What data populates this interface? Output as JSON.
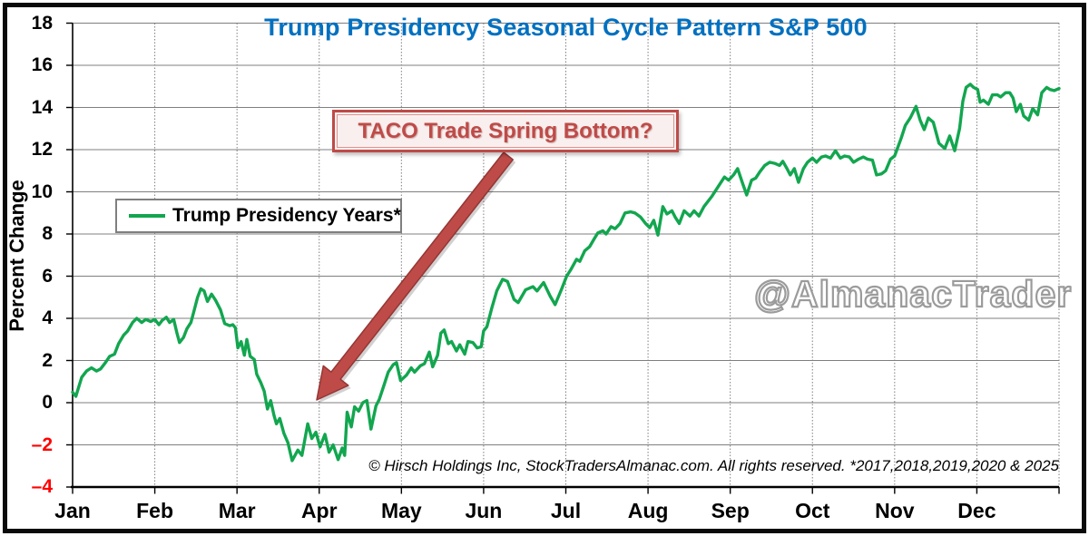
{
  "title": {
    "text": "Trump Presidency Seasonal Cycle Pattern S&P 500"
  },
  "y_axis": {
    "title": "Percent Change",
    "tick_values": [
      18,
      16,
      14,
      12,
      10,
      8,
      6,
      4,
      2,
      0,
      -2,
      -4
    ]
  },
  "x_axis": {
    "months": [
      "Jan",
      "Feb",
      "Mar",
      "Apr",
      "May",
      "Jun",
      "Jul",
      "Aug",
      "Sep",
      "Oct",
      "Nov",
      "Dec"
    ]
  },
  "legend": {
    "label": "Trump Presidency Years*"
  },
  "annotation": {
    "text": "TACO Trade Spring Bottom?"
  },
  "watermark": {
    "text": "@AlmanacTrader"
  },
  "footnote": {
    "text": "© Hirsch Holdings Inc, StockTradersAlmanac.com. All rights reserved. *2017,2018,2019,2020 & 2025"
  },
  "colors": {
    "title_blue": "#0070C0",
    "line_green": "#12A64F",
    "annotation_red": "#BE4B48",
    "annotation_red_dark": "#943634",
    "negative_tick_red": "#FF0000",
    "watermark_gray": "#9B9B9B",
    "grid_gray": "#7F7F7F",
    "axis_black": "#000000"
  },
  "chart_data": {
    "type": "line",
    "title": "Trump Presidency Seasonal Cycle Pattern S&P 500",
    "xlabel": "",
    "ylabel": "Percent Change",
    "ylim": [
      -4,
      18
    ],
    "xlim": [
      0,
      12
    ],
    "x_unit": "month fraction (0 = Jan 1, 12 = Dec 31)",
    "x_tick_labels": [
      "Jan",
      "Feb",
      "Mar",
      "Apr",
      "May",
      "Jun",
      "Jul",
      "Aug",
      "Sep",
      "Oct",
      "Nov",
      "Dec"
    ],
    "y_ticks": [
      18,
      16,
      14,
      12,
      10,
      8,
      6,
      4,
      2,
      0,
      -2,
      -4
    ],
    "grid": true,
    "legend_position": "upper-left-inside",
    "series": [
      {
        "name": "Trump Presidency Years*",
        "points": [
          [
            0.0,
            0.5
          ],
          [
            0.04,
            0.3
          ],
          [
            0.11,
            1.2
          ],
          [
            0.17,
            1.5
          ],
          [
            0.23,
            1.65
          ],
          [
            0.29,
            1.5
          ],
          [
            0.34,
            1.6
          ],
          [
            0.4,
            1.9
          ],
          [
            0.45,
            2.2
          ],
          [
            0.51,
            2.3
          ],
          [
            0.56,
            2.8
          ],
          [
            0.62,
            3.2
          ],
          [
            0.67,
            3.4
          ],
          [
            0.73,
            3.8
          ],
          [
            0.78,
            4.0
          ],
          [
            0.84,
            3.8
          ],
          [
            0.89,
            3.95
          ],
          [
            0.95,
            3.85
          ],
          [
            1.0,
            3.95
          ],
          [
            1.05,
            3.7
          ],
          [
            1.09,
            3.9
          ],
          [
            1.14,
            4.05
          ],
          [
            1.18,
            3.8
          ],
          [
            1.23,
            3.95
          ],
          [
            1.27,
            3.3
          ],
          [
            1.3,
            2.85
          ],
          [
            1.35,
            3.1
          ],
          [
            1.39,
            3.5
          ],
          [
            1.44,
            3.8
          ],
          [
            1.48,
            4.4
          ],
          [
            1.52,
            5.0
          ],
          [
            1.56,
            5.4
          ],
          [
            1.6,
            5.3
          ],
          [
            1.64,
            4.8
          ],
          [
            1.69,
            5.15
          ],
          [
            1.74,
            4.85
          ],
          [
            1.8,
            4.4
          ],
          [
            1.85,
            3.75
          ],
          [
            1.91,
            3.65
          ],
          [
            1.95,
            3.7
          ],
          [
            1.98,
            3.55
          ],
          [
            2.01,
            2.6
          ],
          [
            2.05,
            2.9
          ],
          [
            2.09,
            2.25
          ],
          [
            2.12,
            3.0
          ],
          [
            2.16,
            2.2
          ],
          [
            2.21,
            2.05
          ],
          [
            2.24,
            1.35
          ],
          [
            2.29,
            0.95
          ],
          [
            2.33,
            0.55
          ],
          [
            2.37,
            -0.3
          ],
          [
            2.41,
            0.1
          ],
          [
            2.45,
            -0.6
          ],
          [
            2.48,
            -1.0
          ],
          [
            2.52,
            -0.75
          ],
          [
            2.57,
            -1.45
          ],
          [
            2.62,
            -1.9
          ],
          [
            2.67,
            -2.75
          ],
          [
            2.74,
            -2.25
          ],
          [
            2.79,
            -2.5
          ],
          [
            2.86,
            -1.0
          ],
          [
            2.91,
            -1.7
          ],
          [
            2.96,
            -1.4
          ],
          [
            3.01,
            -2.1
          ],
          [
            3.07,
            -1.5
          ],
          [
            3.12,
            -2.35
          ],
          [
            3.17,
            -2.0
          ],
          [
            3.23,
            -2.7
          ],
          [
            3.28,
            -2.15
          ],
          [
            3.31,
            -2.5
          ],
          [
            3.34,
            -0.45
          ],
          [
            3.39,
            -1.15
          ],
          [
            3.43,
            -0.2
          ],
          [
            3.48,
            -0.4
          ],
          [
            3.53,
            0.0
          ],
          [
            3.58,
            0.1
          ],
          [
            3.63,
            -1.25
          ],
          [
            3.69,
            -0.15
          ],
          [
            3.73,
            0.15
          ],
          [
            3.79,
            0.85
          ],
          [
            3.84,
            1.45
          ],
          [
            3.9,
            1.8
          ],
          [
            3.94,
            1.9
          ],
          [
            3.99,
            1.05
          ],
          [
            4.06,
            1.3
          ],
          [
            4.12,
            1.65
          ],
          [
            4.16,
            1.45
          ],
          [
            4.23,
            1.75
          ],
          [
            4.28,
            1.85
          ],
          [
            4.34,
            2.4
          ],
          [
            4.38,
            1.7
          ],
          [
            4.44,
            2.25
          ],
          [
            4.48,
            3.3
          ],
          [
            4.52,
            3.45
          ],
          [
            4.57,
            2.8
          ],
          [
            4.61,
            2.9
          ],
          [
            4.67,
            2.45
          ],
          [
            4.71,
            2.75
          ],
          [
            4.77,
            2.3
          ],
          [
            4.81,
            2.9
          ],
          [
            4.87,
            2.85
          ],
          [
            4.92,
            2.6
          ],
          [
            4.97,
            2.65
          ],
          [
            5.0,
            3.4
          ],
          [
            5.04,
            3.6
          ],
          [
            5.1,
            4.5
          ],
          [
            5.16,
            5.3
          ],
          [
            5.23,
            5.85
          ],
          [
            5.29,
            5.75
          ],
          [
            5.37,
            4.9
          ],
          [
            5.42,
            4.75
          ],
          [
            5.51,
            5.35
          ],
          [
            5.6,
            5.5
          ],
          [
            5.65,
            5.3
          ],
          [
            5.73,
            5.7
          ],
          [
            5.81,
            5.05
          ],
          [
            5.87,
            4.65
          ],
          [
            5.95,
            5.4
          ],
          [
            6.01,
            6.0
          ],
          [
            6.06,
            6.3
          ],
          [
            6.13,
            6.8
          ],
          [
            6.17,
            6.7
          ],
          [
            6.23,
            7.2
          ],
          [
            6.29,
            7.4
          ],
          [
            6.35,
            7.8
          ],
          [
            6.39,
            8.05
          ],
          [
            6.45,
            8.15
          ],
          [
            6.49,
            8.0
          ],
          [
            6.55,
            8.35
          ],
          [
            6.6,
            8.25
          ],
          [
            6.66,
            8.5
          ],
          [
            6.72,
            9.0
          ],
          [
            6.79,
            9.05
          ],
          [
            6.84,
            9.0
          ],
          [
            6.91,
            8.8
          ],
          [
            6.97,
            8.5
          ],
          [
            7.02,
            8.3
          ],
          [
            7.07,
            8.65
          ],
          [
            7.12,
            7.95
          ],
          [
            7.18,
            9.3
          ],
          [
            7.23,
            8.95
          ],
          [
            7.29,
            9.1
          ],
          [
            7.33,
            8.8
          ],
          [
            7.38,
            8.5
          ],
          [
            7.44,
            9.1
          ],
          [
            7.51,
            8.85
          ],
          [
            7.56,
            9.1
          ],
          [
            7.62,
            8.85
          ],
          [
            7.68,
            9.3
          ],
          [
            7.78,
            9.8
          ],
          [
            7.87,
            10.35
          ],
          [
            7.93,
            10.7
          ],
          [
            7.98,
            10.55
          ],
          [
            8.04,
            10.8
          ],
          [
            8.09,
            11.1
          ],
          [
            8.15,
            10.4
          ],
          [
            8.2,
            9.85
          ],
          [
            8.26,
            10.55
          ],
          [
            8.31,
            10.65
          ],
          [
            8.36,
            10.95
          ],
          [
            8.42,
            11.25
          ],
          [
            8.48,
            11.4
          ],
          [
            8.54,
            11.35
          ],
          [
            8.6,
            11.25
          ],
          [
            8.64,
            11.45
          ],
          [
            8.69,
            11.1
          ],
          [
            8.73,
            10.8
          ],
          [
            8.78,
            11.1
          ],
          [
            8.83,
            10.45
          ],
          [
            8.89,
            11.1
          ],
          [
            8.94,
            11.4
          ],
          [
            9.0,
            11.6
          ],
          [
            9.05,
            11.4
          ],
          [
            9.11,
            11.65
          ],
          [
            9.16,
            11.7
          ],
          [
            9.22,
            11.6
          ],
          [
            9.28,
            11.95
          ],
          [
            9.34,
            11.6
          ],
          [
            9.39,
            11.7
          ],
          [
            9.45,
            11.65
          ],
          [
            9.5,
            11.4
          ],
          [
            9.56,
            11.55
          ],
          [
            9.62,
            11.65
          ],
          [
            9.67,
            11.55
          ],
          [
            9.73,
            11.5
          ],
          [
            9.78,
            10.8
          ],
          [
            9.84,
            10.85
          ],
          [
            9.89,
            11.0
          ],
          [
            9.95,
            11.55
          ],
          [
            10.0,
            11.7
          ],
          [
            10.08,
            12.55
          ],
          [
            10.13,
            13.15
          ],
          [
            10.19,
            13.5
          ],
          [
            10.26,
            14.05
          ],
          [
            10.31,
            13.4
          ],
          [
            10.36,
            12.95
          ],
          [
            10.41,
            13.5
          ],
          [
            10.47,
            13.3
          ],
          [
            10.54,
            12.3
          ],
          [
            10.61,
            12.05
          ],
          [
            10.67,
            12.65
          ],
          [
            10.73,
            11.95
          ],
          [
            10.79,
            13.0
          ],
          [
            10.83,
            14.3
          ],
          [
            10.87,
            14.95
          ],
          [
            10.92,
            15.1
          ],
          [
            10.96,
            14.95
          ],
          [
            11.01,
            14.85
          ],
          [
            11.04,
            14.25
          ],
          [
            11.08,
            14.35
          ],
          [
            11.14,
            14.15
          ],
          [
            11.19,
            14.6
          ],
          [
            11.25,
            14.6
          ],
          [
            11.29,
            14.5
          ],
          [
            11.35,
            14.7
          ],
          [
            11.4,
            14.7
          ],
          [
            11.44,
            14.45
          ],
          [
            11.48,
            13.8
          ],
          [
            11.53,
            14.15
          ],
          [
            11.57,
            13.6
          ],
          [
            11.63,
            13.4
          ],
          [
            11.68,
            13.95
          ],
          [
            11.74,
            13.65
          ],
          [
            11.79,
            14.7
          ],
          [
            11.85,
            14.95
          ],
          [
            11.89,
            14.85
          ],
          [
            11.94,
            14.8
          ],
          [
            12.0,
            14.9
          ]
        ]
      }
    ],
    "annotations": [
      {
        "text": "TACO Trade Spring Bottom?",
        "arrow_from": [
          5.3,
          11.7
        ],
        "arrow_to": [
          2.97,
          0.13
        ]
      }
    ]
  }
}
